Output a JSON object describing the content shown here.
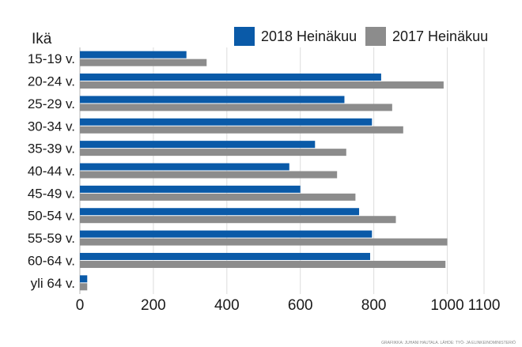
{
  "chart_data": {
    "type": "bar",
    "orientation": "horizontal",
    "title": "",
    "ylabel": "Ikä",
    "xlabel": "",
    "categories": [
      "15-19 v.",
      "20-24 v.",
      "25-29 v.",
      "30-34 v.",
      "35-39 v.",
      "40-44 v.",
      "45-49 v.",
      "50-54 v.",
      "55-59 v.",
      "60-64 v.",
      "yli 64 v."
    ],
    "series": [
      {
        "name": "2018 Heinäkuu",
        "color": "#0a5aa8",
        "values": [
          290,
          820,
          720,
          795,
          640,
          570,
          600,
          760,
          795,
          790,
          20
        ]
      },
      {
        "name": "2017 Heinäkuu",
        "color": "#8c8c8c",
        "values": [
          345,
          990,
          850,
          880,
          725,
          700,
          750,
          860,
          1000,
          995,
          20
        ]
      }
    ],
    "xlim": [
      0,
      1100
    ],
    "xticks": [
      0,
      200,
      400,
      600,
      800,
      1000,
      1100
    ],
    "grid": true,
    "legend_position": "top-right",
    "source_credit": "GRAFIIKKA: JUHANI HAUTALA. LÄHDE: TYÖ- JA ELINKEINOMINISTERIÖ"
  }
}
